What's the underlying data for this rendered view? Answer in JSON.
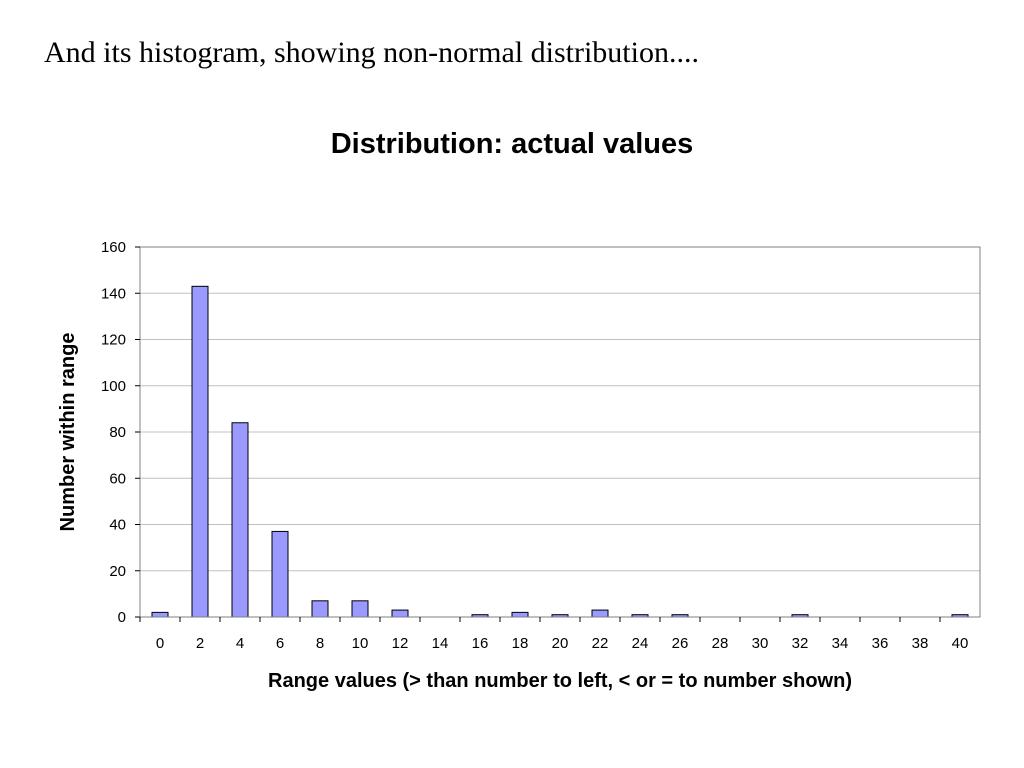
{
  "slide": {
    "heading": "And its histogram, showing non-normal distribution...."
  },
  "chart_data": {
    "type": "bar",
    "title": "Distribution: actual values",
    "xlabel": "Range values (> than number to left, < or = to number shown)",
    "ylabel": "Number within range",
    "categories": [
      "0",
      "2",
      "4",
      "6",
      "8",
      "10",
      "12",
      "14",
      "16",
      "18",
      "20",
      "22",
      "24",
      "26",
      "28",
      "30",
      "32",
      "34",
      "36",
      "38",
      "40"
    ],
    "values": [
      2,
      143,
      84,
      37,
      7,
      7,
      3,
      0,
      1,
      2,
      1,
      3,
      1,
      1,
      0,
      0,
      1,
      0,
      0,
      0,
      1
    ],
    "ylim": [
      0,
      160
    ],
    "yticks": [
      0,
      20,
      40,
      60,
      80,
      100,
      120,
      140,
      160
    ],
    "grid": true,
    "legend": "none",
    "colors": {
      "bar_fill": "#9999ff",
      "bar_stroke": "#000000",
      "grid": "#c0c0c0",
      "frame": "#808080"
    }
  }
}
